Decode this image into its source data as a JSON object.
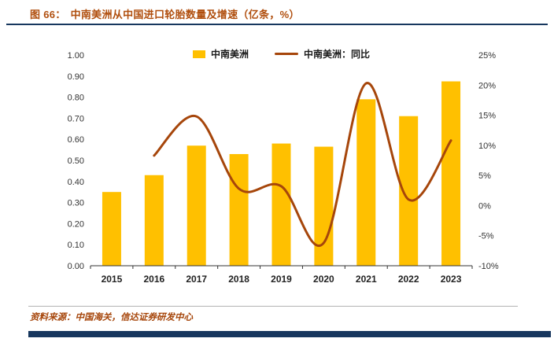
{
  "header": {
    "figure_label": "图 66：",
    "title": "中南美洲从中国进口轮胎数量及增速（亿条，%）"
  },
  "footer": {
    "source": "资料来源：中国海关，信达证券研发中心"
  },
  "colors": {
    "bar": "#FFC000",
    "line": "#A6460B",
    "title": "#B04E0D",
    "rule": "#17375E",
    "footer_text": "#A6460B",
    "axis_text": "#333333"
  },
  "chart_data": {
    "type": "bar",
    "combo": "bar+line",
    "title": "中南美洲从中国进口轮胎数量及增速（亿条，%）",
    "categories": [
      "2015",
      "2016",
      "2017",
      "2018",
      "2019",
      "2020",
      "2021",
      "2022",
      "2023"
    ],
    "series": [
      {
        "name": "中南美洲",
        "type": "bar",
        "axis": "left",
        "values": [
          0.35,
          0.43,
          0.57,
          0.53,
          0.58,
          0.565,
          0.79,
          0.71,
          0.875
        ]
      },
      {
        "name": "中南美洲：同比",
        "type": "line",
        "axis": "right",
        "x": [
          "2016",
          "2017",
          "2018",
          "2019",
          "2020",
          "2021",
          "2022",
          "2023"
        ],
        "values": [
          8.3,
          14.8,
          2.8,
          3.2,
          -6.2,
          20.3,
          1.0,
          10.8
        ]
      }
    ],
    "left_axis": {
      "min": 0,
      "max": 1,
      "step": 0.1,
      "decimals": 2
    },
    "right_axis": {
      "min": -10,
      "max": 25,
      "step": 5,
      "suffix": "%"
    },
    "legend_position": "top-center",
    "grid": false
  }
}
